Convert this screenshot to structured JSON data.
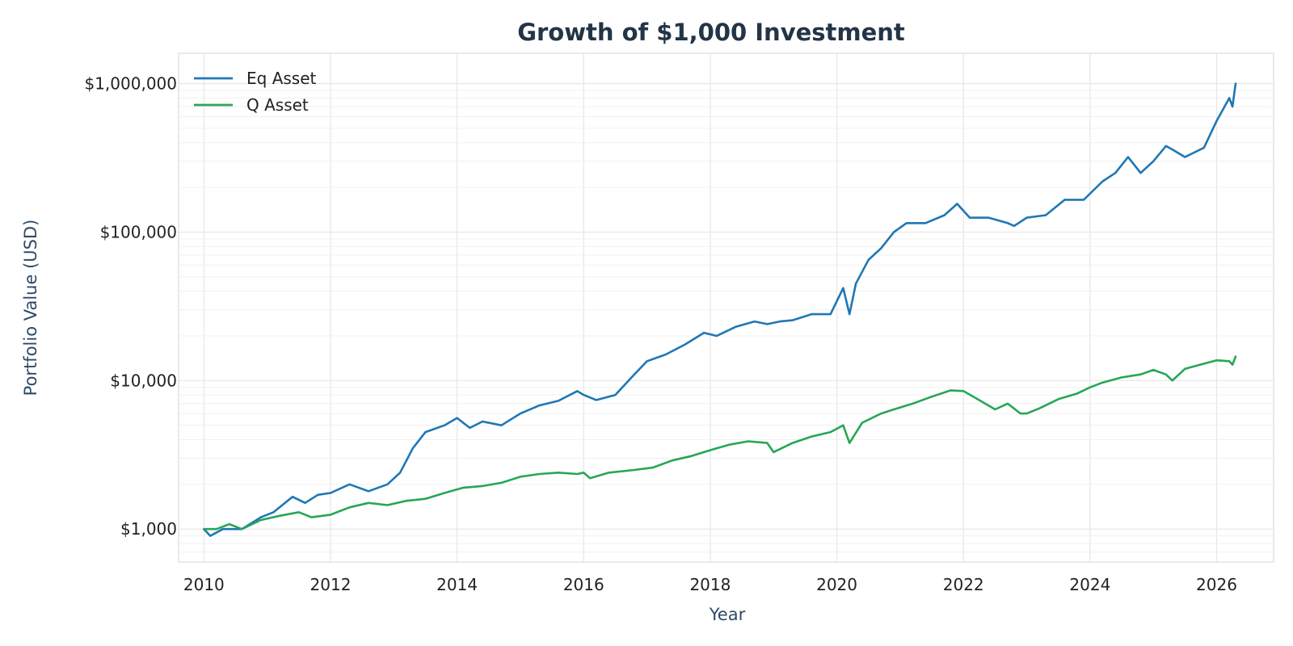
{
  "chart_data": {
    "type": "line",
    "title": "Growth of $1,000 Investment",
    "xlabel": "Year",
    "ylabel": "Portfolio Value (USD)",
    "yscale": "log",
    "xlim": [
      2009.6,
      2026.9
    ],
    "ylim": [
      600,
      1600000
    ],
    "x_ticks": [
      2010,
      2012,
      2014,
      2016,
      2018,
      2020,
      2022,
      2024,
      2026
    ],
    "x_tick_labels": [
      "2010",
      "2012",
      "2014",
      "2016",
      "2018",
      "2020",
      "2022",
      "2024",
      "2026"
    ],
    "y_ticks": [
      1000,
      10000,
      100000,
      1000000
    ],
    "y_tick_labels": [
      "$1,000",
      "$10,000",
      "$100,000",
      "$1,000,000"
    ],
    "grid": true,
    "legend_position": "top-left",
    "series": [
      {
        "name": "Eq Asset",
        "color": "#1f77b4",
        "x": [
          2010.0,
          2010.1,
          2010.3,
          2010.6,
          2010.9,
          2011.1,
          2011.4,
          2011.6,
          2011.8,
          2012.0,
          2012.3,
          2012.6,
          2012.9,
          2013.1,
          2013.3,
          2013.5,
          2013.8,
          2014.0,
          2014.2,
          2014.4,
          2014.7,
          2015.0,
          2015.3,
          2015.6,
          2015.9,
          2016.0,
          2016.2,
          2016.5,
          2016.8,
          2017.0,
          2017.3,
          2017.6,
          2017.9,
          2018.1,
          2018.4,
          2018.7,
          2018.9,
          2019.1,
          2019.3,
          2019.6,
          2019.9,
          2020.1,
          2020.2,
          2020.3,
          2020.5,
          2020.7,
          2020.9,
          2021.1,
          2021.4,
          2021.7,
          2021.9,
          2022.1,
          2022.4,
          2022.7,
          2022.8,
          2023.0,
          2023.3,
          2023.6,
          2023.9,
          2024.2,
          2024.4,
          2024.6,
          2024.8,
          2025.0,
          2025.2,
          2025.3,
          2025.5,
          2025.8,
          2026.0,
          2026.2,
          2026.25,
          2026.3
        ],
        "values": [
          1000,
          900,
          1000,
          1000,
          1200,
          1300,
          1650,
          1500,
          1700,
          1750,
          2000,
          1800,
          2000,
          2400,
          3500,
          4500,
          5000,
          5600,
          4800,
          5300,
          5000,
          6000,
          6800,
          7300,
          8500,
          8000,
          7400,
          8000,
          11000,
          13500,
          15000,
          17500,
          21000,
          20000,
          23000,
          25000,
          24000,
          25000,
          25500,
          28000,
          28000,
          42000,
          28000,
          45000,
          65000,
          78000,
          100000,
          115000,
          115000,
          130000,
          155000,
          125000,
          125000,
          115000,
          110000,
          125000,
          130000,
          165000,
          165000,
          220000,
          250000,
          320000,
          250000,
          300000,
          380000,
          360000,
          320000,
          370000,
          560000,
          800000,
          700000,
          1000000
        ]
      },
      {
        "name": "Q Asset",
        "color": "#27a657",
        "x": [
          2010.0,
          2010.2,
          2010.4,
          2010.6,
          2010.9,
          2011.2,
          2011.5,
          2011.7,
          2012.0,
          2012.3,
          2012.6,
          2012.9,
          2013.2,
          2013.5,
          2013.8,
          2014.1,
          2014.4,
          2014.7,
          2015.0,
          2015.3,
          2015.6,
          2015.9,
          2016.0,
          2016.1,
          2016.4,
          2016.8,
          2017.1,
          2017.4,
          2017.7,
          2018.0,
          2018.3,
          2018.6,
          2018.9,
          2019.0,
          2019.3,
          2019.6,
          2019.9,
          2020.1,
          2020.2,
          2020.4,
          2020.7,
          2020.9,
          2021.2,
          2021.5,
          2021.8,
          2022.0,
          2022.2,
          2022.5,
          2022.7,
          2022.9,
          2023.0,
          2023.2,
          2023.5,
          2023.8,
          2024.0,
          2024.2,
          2024.5,
          2024.8,
          2025.0,
          2025.2,
          2025.3,
          2025.5,
          2025.8,
          2026.0,
          2026.2,
          2026.25,
          2026.3
        ],
        "values": [
          1000,
          1000,
          1080,
          1000,
          1150,
          1230,
          1300,
          1200,
          1250,
          1400,
          1500,
          1450,
          1550,
          1600,
          1750,
          1900,
          1950,
          2050,
          2250,
          2350,
          2400,
          2350,
          2400,
          2200,
          2400,
          2500,
          2600,
          2900,
          3100,
          3400,
          3700,
          3900,
          3800,
          3300,
          3800,
          4200,
          4500,
          5000,
          3800,
          5200,
          6000,
          6400,
          7000,
          7800,
          8600,
          8500,
          7600,
          6400,
          7000,
          6000,
          6000,
          6500,
          7500,
          8200,
          9000,
          9700,
          10500,
          11000,
          11800,
          11000,
          10000,
          12000,
          13000,
          13700,
          13500,
          12800,
          14500
        ]
      }
    ]
  }
}
